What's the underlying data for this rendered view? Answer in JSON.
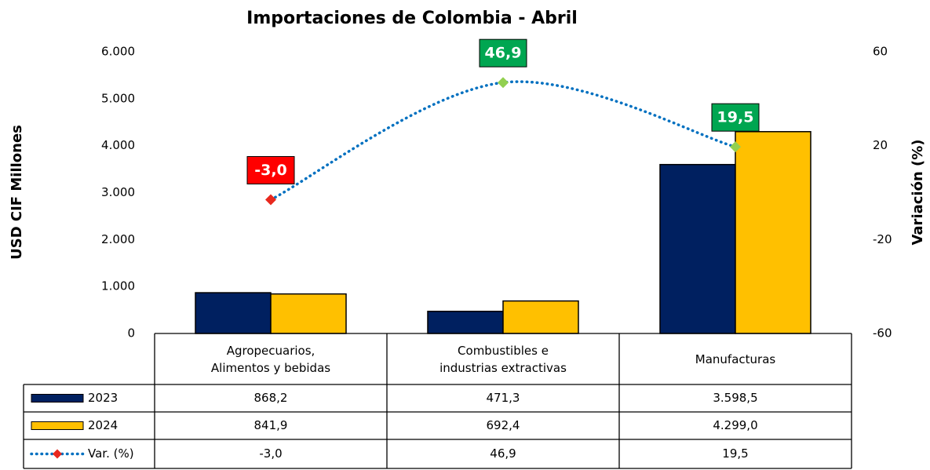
{
  "chart_data": {
    "type": "bar",
    "title": "Importaciones de Colombia - Abril",
    "y_label": "USD CIF Millones",
    "y2_label": "Variación (%)",
    "categories": [
      "Agropecuarios, Alimentos y bebidas",
      "Combustibles e industrias extractivas",
      "Manufacturas"
    ],
    "series": [
      {
        "name": "2023",
        "color": "#002060",
        "values": [
          868.2,
          471.3,
          3598.5
        ],
        "value_labels": [
          "868,2",
          "471,3",
          "3.598,5"
        ]
      },
      {
        "name": "2024",
        "color": "#ffc000",
        "values": [
          841.9,
          692.4,
          4299.0
        ],
        "value_labels": [
          "841,9",
          "692,4",
          "4.299,0"
        ]
      },
      {
        "name": "Var. (%)",
        "type": "line",
        "axis": "y2",
        "color": "#0070c0",
        "values": [
          -3.0,
          46.9,
          19.5
        ],
        "value_labels": [
          "-3,0",
          "46,9",
          "19,5"
        ],
        "marker_colors": [
          "#e8281e",
          "#92d050",
          "#92d050"
        ],
        "label_colors": [
          "#ff0000",
          "#00a651",
          "#00a651"
        ]
      }
    ],
    "ylim": [
      0,
      6000
    ],
    "yticks": [
      0,
      {
        "value": 1000,
        "label": "1.000"
      },
      {
        "value": 2000,
        "label": "2.000"
      },
      {
        "value": 3000,
        "label": "3.000"
      },
      {
        "value": 4000,
        "label": "4.000"
      },
      {
        "value": 5000,
        "label": "5.000"
      },
      {
        "value": 6000,
        "label": "6.000"
      }
    ],
    "y2lim": [
      -60,
      60
    ],
    "y2ticks": [
      -60,
      -20,
      20,
      60
    ]
  }
}
